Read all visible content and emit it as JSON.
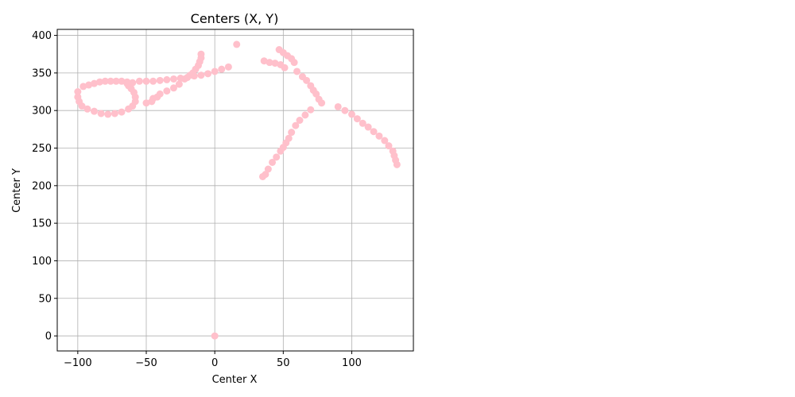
{
  "chart_data": {
    "type": "scatter",
    "title": "Centers (X, Y)",
    "xlabel": "Center X",
    "ylabel": "Center Y",
    "xlim": [
      -115,
      145
    ],
    "ylim": [
      -20,
      408
    ],
    "xticks": [
      -100,
      -50,
      0,
      50,
      100
    ],
    "yticks": [
      0,
      50,
      100,
      150,
      200,
      250,
      300,
      350,
      400
    ],
    "grid": true,
    "color": "#ffc0cb",
    "series": [
      {
        "points": [
          [
            0,
            0
          ],
          [
            16,
            388
          ],
          [
            -10,
            375
          ],
          [
            -10,
            370
          ],
          [
            -11,
            365
          ],
          [
            -12,
            360
          ],
          [
            -14,
            355
          ],
          [
            -16,
            350
          ],
          [
            -18,
            347
          ],
          [
            -22,
            342
          ],
          [
            -26,
            335
          ],
          [
            -30,
            330
          ],
          [
            -35,
            326
          ],
          [
            -40,
            322
          ],
          [
            -45,
            316
          ],
          [
            -50,
            310
          ],
          [
            -46,
            312
          ],
          [
            -42,
            318
          ],
          [
            -96,
            332
          ],
          [
            -92,
            334
          ],
          [
            -88,
            336
          ],
          [
            -84,
            338
          ],
          [
            -80,
            339
          ],
          [
            -76,
            339
          ],
          [
            -72,
            339
          ],
          [
            -68,
            339
          ],
          [
            -64,
            338
          ],
          [
            -60,
            337
          ],
          [
            -55,
            339
          ],
          [
            -50,
            339
          ],
          [
            -45,
            339
          ],
          [
            -40,
            340
          ],
          [
            -35,
            341
          ],
          [
            -30,
            342
          ],
          [
            -25,
            343
          ],
          [
            -20,
            344
          ],
          [
            -15,
            346
          ],
          [
            -10,
            347
          ],
          [
            -5,
            349
          ],
          [
            0,
            352
          ],
          [
            5,
            355
          ],
          [
            10,
            358
          ],
          [
            -100,
            325
          ],
          [
            -100,
            318
          ],
          [
            -99,
            312
          ],
          [
            -97,
            306
          ],
          [
            -93,
            302
          ],
          [
            -88,
            299
          ],
          [
            -83,
            296
          ],
          [
            -78,
            295
          ],
          [
            -73,
            296
          ],
          [
            -68,
            298
          ],
          [
            -63,
            302
          ],
          [
            -60,
            306
          ],
          [
            -58,
            312
          ],
          [
            -58,
            318
          ],
          [
            -59,
            324
          ],
          [
            -61,
            329
          ],
          [
            -63,
            333
          ],
          [
            -64,
            336
          ],
          [
            36,
            366
          ],
          [
            40,
            364
          ],
          [
            44,
            363
          ],
          [
            48,
            361
          ],
          [
            51,
            357
          ],
          [
            47,
            381
          ],
          [
            50,
            377
          ],
          [
            53,
            373
          ],
          [
            56,
            369
          ],
          [
            58,
            364
          ],
          [
            60,
            352
          ],
          [
            64,
            345
          ],
          [
            67,
            340
          ],
          [
            70,
            333
          ],
          [
            72,
            327
          ],
          [
            74,
            322
          ],
          [
            76,
            315
          ],
          [
            78,
            310
          ],
          [
            70,
            301
          ],
          [
            66,
            294
          ],
          [
            62,
            287
          ],
          [
            59,
            280
          ],
          [
            56,
            271
          ],
          [
            54,
            263
          ],
          [
            52,
            257
          ],
          [
            50,
            251
          ],
          [
            48,
            246
          ],
          [
            45,
            238
          ],
          [
            42,
            231
          ],
          [
            39,
            222
          ],
          [
            37,
            215
          ],
          [
            35,
            212
          ],
          [
            90,
            305
          ],
          [
            95,
            300
          ],
          [
            100,
            295
          ],
          [
            104,
            289
          ],
          [
            108,
            283
          ],
          [
            112,
            278
          ],
          [
            116,
            272
          ],
          [
            120,
            266
          ],
          [
            124,
            260
          ],
          [
            127,
            253
          ],
          [
            130,
            246
          ],
          [
            131,
            240
          ],
          [
            132,
            234
          ],
          [
            133,
            228
          ]
        ]
      }
    ]
  }
}
